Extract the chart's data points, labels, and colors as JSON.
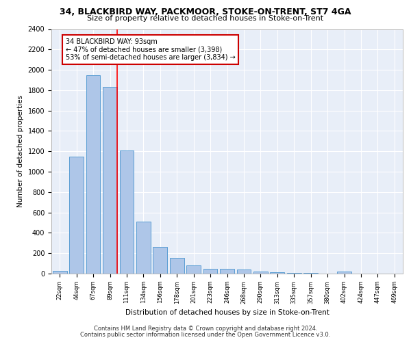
{
  "title1": "34, BLACKBIRD WAY, PACKMOOR, STOKE-ON-TRENT, ST7 4GA",
  "title2": "Size of property relative to detached houses in Stoke-on-Trent",
  "xlabel": "Distribution of detached houses by size in Stoke-on-Trent",
  "ylabel": "Number of detached properties",
  "categories": [
    "22sqm",
    "44sqm",
    "67sqm",
    "89sqm",
    "111sqm",
    "134sqm",
    "156sqm",
    "178sqm",
    "201sqm",
    "223sqm",
    "246sqm",
    "268sqm",
    "290sqm",
    "313sqm",
    "335sqm",
    "357sqm",
    "380sqm",
    "402sqm",
    "424sqm",
    "447sqm",
    "469sqm"
  ],
  "values": [
    30,
    1150,
    1950,
    1830,
    1210,
    510,
    265,
    155,
    80,
    50,
    45,
    40,
    20,
    15,
    5,
    5,
    0,
    20,
    0,
    0,
    0
  ],
  "bar_color": "#aec6e8",
  "bar_edge_color": "#5a9ed4",
  "annotation_line1": "34 BLACKBIRD WAY: 93sqm",
  "annotation_line2": "← 47% of detached houses are smaller (3,398)",
  "annotation_line3": "53% of semi-detached houses are larger (3,834) →",
  "annotation_box_edge": "#cc0000",
  "footer1": "Contains HM Land Registry data © Crown copyright and database right 2024.",
  "footer2": "Contains public sector information licensed under the Open Government Licence v3.0.",
  "background_color": "#e8eef8",
  "ylim": [
    0,
    2400
  ],
  "yticks": [
    0,
    200,
    400,
    600,
    800,
    1000,
    1200,
    1400,
    1600,
    1800,
    2000,
    2200,
    2400
  ]
}
